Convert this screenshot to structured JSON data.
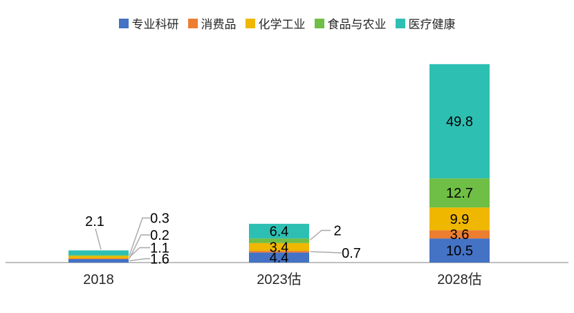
{
  "chart_data": {
    "type": "bar",
    "stacked": true,
    "title": "",
    "categories": [
      "2018",
      "2023估",
      "2028估"
    ],
    "series": [
      {
        "name": "专业科研",
        "color": "#4472C4",
        "values": [
          1.6,
          4.4,
          10.5
        ]
      },
      {
        "name": "消费品",
        "color": "#ED7D31",
        "values": [
          0.2,
          0.7,
          3.6
        ]
      },
      {
        "name": "化学工业",
        "color": "#EFB700",
        "values": [
          1.1,
          3.4,
          9.9
        ]
      },
      {
        "name": "食品与农业",
        "color": "#6FBE45",
        "values": [
          0.3,
          2,
          12.7
        ]
      },
      {
        "name": "医疗健康",
        "color": "#2EBFB3",
        "values": [
          2.1,
          6.4,
          49.8
        ]
      }
    ],
    "legend_position": "top",
    "grid": false,
    "ylim": [
      0,
      90
    ],
    "axis_line_color": "#BFBFBF",
    "callout_line_color": "#A6A6A6",
    "label_color": "#000000",
    "axis_label_color": "#262626"
  }
}
